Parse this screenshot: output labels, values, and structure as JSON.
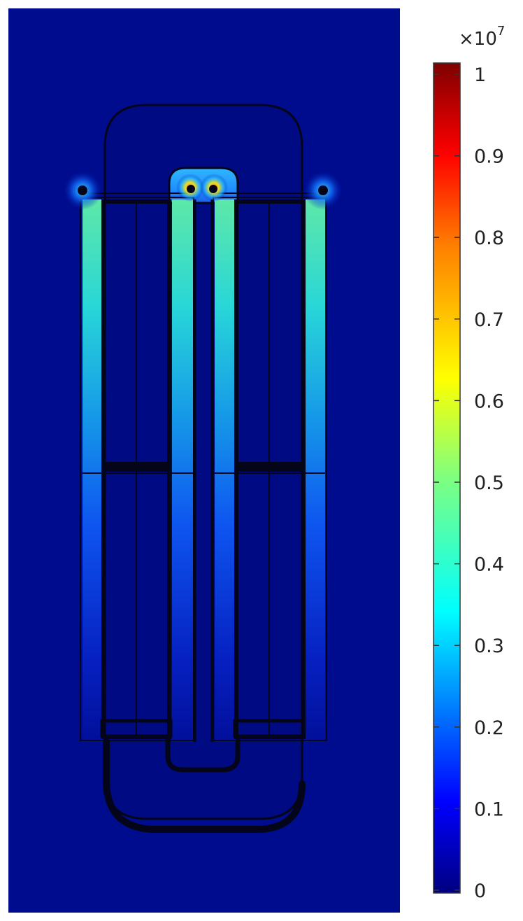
{
  "chart_data": {
    "type": "heatmap",
    "title": "",
    "xlabel": "",
    "ylabel": "",
    "colormap": "jet",
    "colorbar": {
      "range": [
        0,
        1
      ],
      "multiplier_base": "×10",
      "multiplier_exponent": "7",
      "ticks": [
        {
          "value": 0,
          "label": "0"
        },
        {
          "value": 0.1,
          "label": "0.1"
        },
        {
          "value": 0.2,
          "label": "0.2"
        },
        {
          "value": 0.3,
          "label": "0.3"
        },
        {
          "value": 0.4,
          "label": "0.4"
        },
        {
          "value": 0.5,
          "label": "0.5"
        },
        {
          "value": 0.6,
          "label": "0.6"
        },
        {
          "value": 0.7,
          "label": "0.7"
        },
        {
          "value": 0.8,
          "label": "0.8"
        },
        {
          "value": 0.9,
          "label": "0.9"
        },
        {
          "value": 1,
          "label": "1"
        }
      ],
      "colors": [
        "#00007f",
        "#0000ff",
        "#007fff",
        "#00ffff",
        "#7fff7f",
        "#ffff00",
        "#ff7f00",
        "#ff0000",
        "#7f0000"
      ]
    },
    "grid": false,
    "legend": "colorbar-right"
  }
}
